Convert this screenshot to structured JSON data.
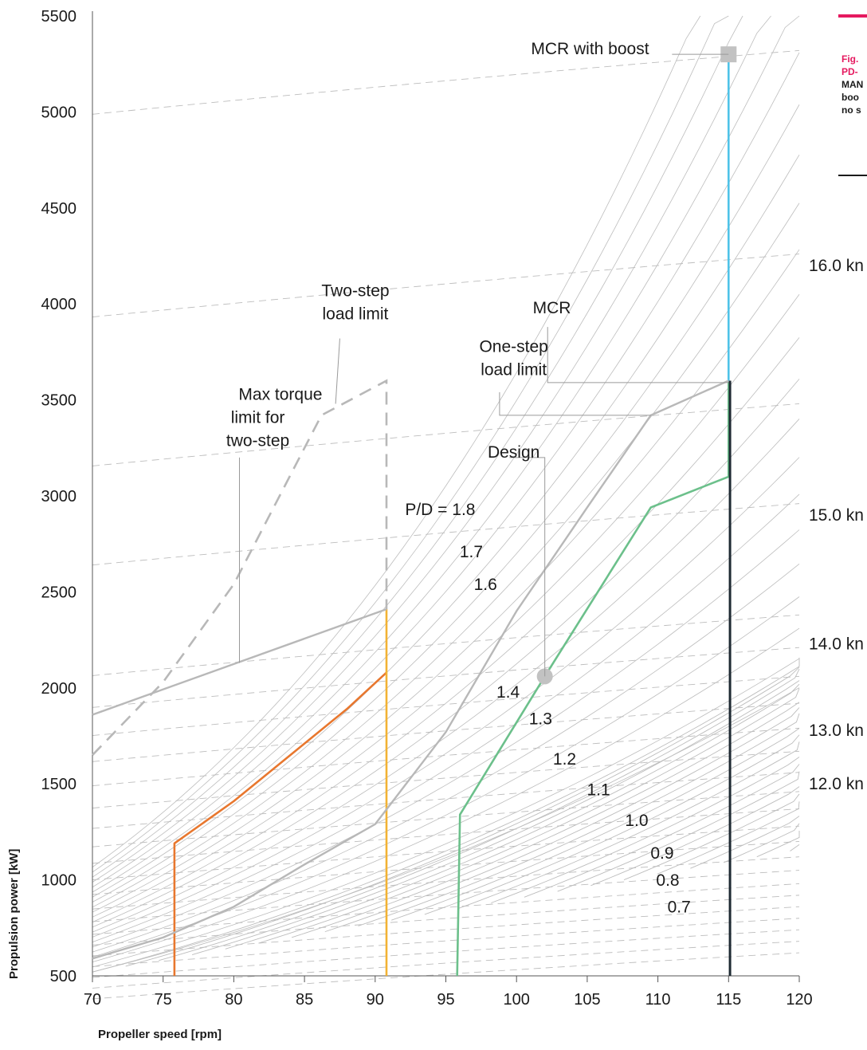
{
  "caption": {
    "figure_label": "Fig.",
    "figure_title": "PD-",
    "description_lines": [
      "MAN",
      "boo",
      "no s"
    ]
  },
  "colors": {
    "accent": "#e5195f",
    "grid_line": "#bdbdbd",
    "limit_line": "#b8b8b8",
    "orange": "#e8772e",
    "yellow": "#f2b233",
    "green": "#6cc08b",
    "cyan": "#4fc3e8",
    "black": "#1f2a33"
  },
  "chart_data": {
    "type": "line",
    "xlabel": "Propeller speed [rpm]",
    "ylabel": "Propulsion power [kW]",
    "xlim": [
      70,
      120
    ],
    "ylim": [
      500,
      5500
    ],
    "x_ticks": [
      "70",
      "75",
      "80",
      "85",
      "90",
      "95",
      "100",
      "105",
      "110",
      "115",
      "120"
    ],
    "y_ticks": [
      "500",
      "1000",
      "1500",
      "2000",
      "2500",
      "3000",
      "3500",
      "4000",
      "4500",
      "5000",
      "5500"
    ],
    "grid": false,
    "pitch_curve_labels": [
      {
        "text": "P/D = 1.8",
        "x": 94.6,
        "y": 2900
      },
      {
        "text": "1.7",
        "x": 96.8,
        "y": 2680
      },
      {
        "text": "1.6",
        "x": 97.8,
        "y": 2510
      },
      {
        "text": "1.4",
        "x": 99.4,
        "y": 1950
      },
      {
        "text": "1.3",
        "x": 101.7,
        "y": 1810
      },
      {
        "text": "1.2",
        "x": 103.4,
        "y": 1600
      },
      {
        "text": "1.1",
        "x": 105.8,
        "y": 1440
      },
      {
        "text": "1.0",
        "x": 108.5,
        "y": 1280
      },
      {
        "text": "0.9",
        "x": 110.3,
        "y": 1110
      },
      {
        "text": "0.8",
        "x": 110.7,
        "y": 970
      },
      {
        "text": "0.7",
        "x": 111.5,
        "y": 830
      }
    ],
    "speed_labels": [
      {
        "text": "16.0 kn",
        "y": 4200
      },
      {
        "text": "15.0 kn",
        "y": 2900
      },
      {
        "text": "14.0 kn",
        "y": 2230
      },
      {
        "text": "13.0 kn",
        "y": 1780
      },
      {
        "text": "12.0 kn",
        "y": 1500
      }
    ],
    "annotations": [
      {
        "text": "MCR with boost",
        "x": 105.2,
        "y": 5300
      },
      {
        "text": "MCR",
        "x": 102.5,
        "y": 3950
      },
      {
        "text": "One-step",
        "x": 99.8,
        "y": 3750
      },
      {
        "text": "load limit",
        "x": 99.8,
        "y": 3630
      },
      {
        "text": "Design",
        "x": 99.8,
        "y": 3200
      },
      {
        "text": "Two-step",
        "x": 88.6,
        "y": 4040
      },
      {
        "text": "load limit",
        "x": 88.6,
        "y": 3920
      },
      {
        "text": "Max torque",
        "x": 83.3,
        "y": 3500
      },
      {
        "text": "limit for",
        "x": 81.7,
        "y": 3380
      },
      {
        "text": "two-step",
        "x": 81.7,
        "y": 3260
      }
    ],
    "series": [
      {
        "name": "",
        "color": "orange",
        "points": [
          [
            75.8,
            500
          ],
          [
            75.8,
            1190
          ],
          [
            80,
            1410
          ],
          [
            85,
            1710
          ],
          [
            88,
            1890
          ],
          [
            90.8,
            2080
          ]
        ]
      },
      {
        "name": "",
        "color": "yellow",
        "points": [
          [
            90.8,
            500
          ],
          [
            90.8,
            2410
          ]
        ]
      },
      {
        "name": "",
        "color": "green",
        "points": [
          [
            95.8,
            500
          ],
          [
            96,
            1340
          ],
          [
            102,
            2060
          ],
          [
            109.5,
            2940
          ],
          [
            115,
            3100
          ],
          [
            115,
            3600
          ]
        ]
      },
      {
        "name": "",
        "color": "cyan",
        "points": [
          [
            115,
            3600
          ],
          [
            115,
            5290
          ]
        ]
      },
      {
        "name": "",
        "color": "black",
        "points": [
          [
            115.1,
            500
          ],
          [
            115.1,
            3600
          ]
        ]
      },
      {
        "name": "",
        "color": "limit",
        "points": [
          [
            70,
            1860
          ],
          [
            90.8,
            2410
          ]
        ]
      },
      {
        "name": "",
        "color": "limit",
        "points": [
          [
            70,
            590
          ],
          [
            75,
            700
          ],
          [
            80,
            860
          ],
          [
            85,
            1080
          ],
          [
            90,
            1290
          ],
          [
            95,
            1770
          ],
          [
            100,
            2400
          ],
          [
            105,
            2940
          ],
          [
            109.5,
            3420
          ],
          [
            115,
            3600
          ]
        ]
      }
    ],
    "dashed_limit": [
      [
        70,
        1650
      ],
      [
        75,
        2030
      ],
      [
        80,
        2540
      ],
      [
        86.2,
        3420
      ],
      [
        90.8,
        3600
      ],
      [
        90.8,
        2410
      ]
    ],
    "markers": [
      {
        "name": "design-point",
        "x": 102,
        "y": 2060,
        "shape": "circle"
      },
      {
        "name": "mcr-boost-point",
        "x": 115,
        "y": 5300,
        "shape": "square"
      }
    ]
  }
}
